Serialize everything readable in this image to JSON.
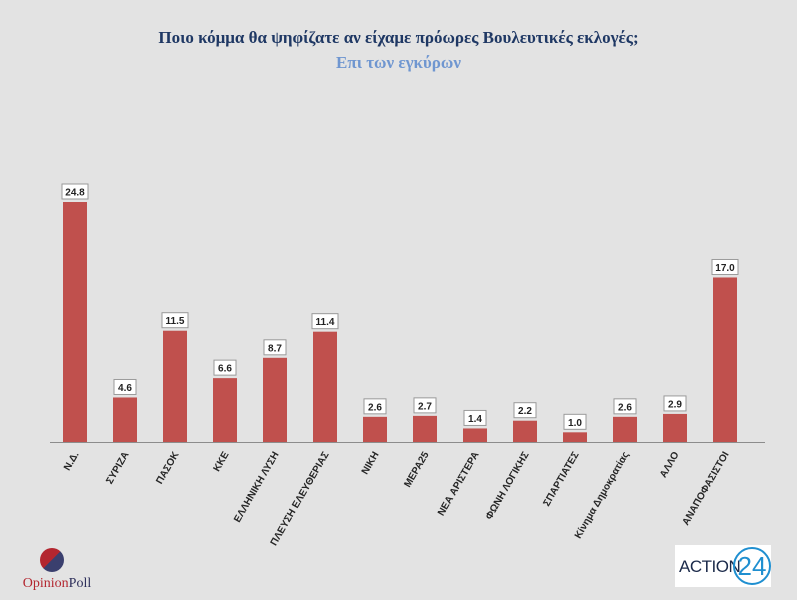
{
  "chart_data": {
    "type": "bar",
    "title": "Ποιο κόμμα θα ψηφίζατε αν είχαμε πρόωρες Βουλευτικές εκλογές;",
    "subtitle": "Επι των εγκύρων",
    "categories": [
      "Ν.Δ.",
      "ΣΥΡΙΖΑ",
      "ΠΑΣΟΚ",
      "ΚΚΕ",
      "ΕΛΛΗΝΙΚΗ ΛΥΣΗ",
      "ΠΛΕΥΣΗ ΕΛΕΥΘΕΡΙΑΣ",
      "ΝΙΚΗ",
      "ΜΕΡΑ25",
      "ΝΕΑ ΑΡΙΣΤΕΡΑ",
      "ΦΩΝΗ ΛΟΓΙΚΗΣ",
      "ΣΠΑΡΤΙΑΤΕΣ",
      "Κίνημα Δημοκρατίας",
      "ΑΛΛΟ",
      "ΑΝΑΠΟΦΑΣΙΣΤΟΙ"
    ],
    "values": [
      24.8,
      4.6,
      11.5,
      6.6,
      8.7,
      11.4,
      2.6,
      2.7,
      1.4,
      2.2,
      1.0,
      2.6,
      2.9,
      17.0
    ],
    "value_labels": [
      "24.8",
      "4.6",
      "11.5",
      "6.6",
      "8.7",
      "11.4",
      "2.6",
      "2.7",
      "1.4",
      "2.2",
      "1.0",
      "2.6",
      "2.9",
      "17.0"
    ],
    "bar_color": "#c0504d",
    "xlabel": "",
    "ylabel": "",
    "ylim": [
      0,
      26
    ],
    "grid": false,
    "legend": "none"
  },
  "logos": {
    "opinion_first": "Opinion",
    "opinion_second": "Poll",
    "action_text": "ACTION",
    "action_number": "24"
  }
}
